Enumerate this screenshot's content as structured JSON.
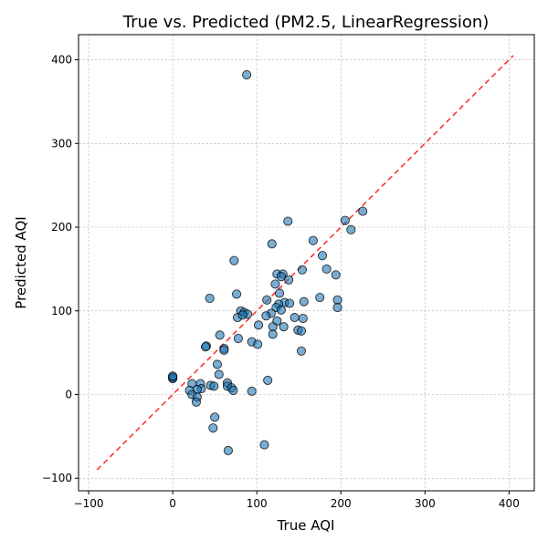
{
  "chart_data": {
    "type": "scatter",
    "title": "True vs. Predicted (PM2.5, LinearRegression)",
    "xlabel": "True AQI",
    "ylabel": "Predicted AQI",
    "xlim": [
      -112,
      430
    ],
    "ylim": [
      -115,
      430
    ],
    "xticks": [
      -100,
      0,
      100,
      200,
      300,
      400
    ],
    "yticks": [
      -100,
      0,
      100,
      200,
      300,
      400
    ],
    "grid": true,
    "point_color": "#1f77b4",
    "point_edge_color": "#000000",
    "reference_line": {
      "from": [
        -90,
        -90
      ],
      "to": [
        405,
        405
      ],
      "color": "#ff0000",
      "style": "dashed"
    },
    "points": [
      {
        "x": 0,
        "y": 20
      },
      {
        "x": 0,
        "y": 21
      },
      {
        "x": 0,
        "y": 19
      },
      {
        "x": 0,
        "y": 22
      },
      {
        "x": 88,
        "y": 382
      },
      {
        "x": 226,
        "y": 219
      },
      {
        "x": 205,
        "y": 208
      },
      {
        "x": 212,
        "y": 197
      },
      {
        "x": 137,
        "y": 207
      },
      {
        "x": 167,
        "y": 184
      },
      {
        "x": 118,
        "y": 180
      },
      {
        "x": 178,
        "y": 166
      },
      {
        "x": 73,
        "y": 160
      },
      {
        "x": 183,
        "y": 150
      },
      {
        "x": 154,
        "y": 149
      },
      {
        "x": 194,
        "y": 143
      },
      {
        "x": 124,
        "y": 144
      },
      {
        "x": 131,
        "y": 144
      },
      {
        "x": 129,
        "y": 141
      },
      {
        "x": 138,
        "y": 137
      },
      {
        "x": 122,
        "y": 132
      },
      {
        "x": 76,
        "y": 120
      },
      {
        "x": 127,
        "y": 121
      },
      {
        "x": 44,
        "y": 115
      },
      {
        "x": 175,
        "y": 116
      },
      {
        "x": 112,
        "y": 113
      },
      {
        "x": 196,
        "y": 113
      },
      {
        "x": 156,
        "y": 111
      },
      {
        "x": 133,
        "y": 110
      },
      {
        "x": 139,
        "y": 109
      },
      {
        "x": 126,
        "y": 108
      },
      {
        "x": 123,
        "y": 104
      },
      {
        "x": 196,
        "y": 104
      },
      {
        "x": 81,
        "y": 100
      },
      {
        "x": 85,
        "y": 98
      },
      {
        "x": 129,
        "y": 101
      },
      {
        "x": 117,
        "y": 97
      },
      {
        "x": 89,
        "y": 96
      },
      {
        "x": 111,
        "y": 94
      },
      {
        "x": 77,
        "y": 92
      },
      {
        "x": 145,
        "y": 92
      },
      {
        "x": 155,
        "y": 91
      },
      {
        "x": 83,
        "y": 95
      },
      {
        "x": 124,
        "y": 88
      },
      {
        "x": 102,
        "y": 83
      },
      {
        "x": 132,
        "y": 81
      },
      {
        "x": 119,
        "y": 81
      },
      {
        "x": 149,
        "y": 77
      },
      {
        "x": 153,
        "y": 76
      },
      {
        "x": 119,
        "y": 72
      },
      {
        "x": 56,
        "y": 71
      },
      {
        "x": 78,
        "y": 67
      },
      {
        "x": 94,
        "y": 63
      },
      {
        "x": 101,
        "y": 60
      },
      {
        "x": 40,
        "y": 58
      },
      {
        "x": 39,
        "y": 57
      },
      {
        "x": 61,
        "y": 55
      },
      {
        "x": 61,
        "y": 53
      },
      {
        "x": 153,
        "y": 52
      },
      {
        "x": 53,
        "y": 36
      },
      {
        "x": 55,
        "y": 24
      },
      {
        "x": 113,
        "y": 17
      },
      {
        "x": 65,
        "y": 14
      },
      {
        "x": 33,
        "y": 13
      },
      {
        "x": 23,
        "y": 13
      },
      {
        "x": 45,
        "y": 11
      },
      {
        "x": 49,
        "y": 10
      },
      {
        "x": 65,
        "y": 10
      },
      {
        "x": 70,
        "y": 8
      },
      {
        "x": 34,
        "y": 7
      },
      {
        "x": 29,
        "y": 6
      },
      {
        "x": 72,
        "y": 5
      },
      {
        "x": 20,
        "y": 5
      },
      {
        "x": 94,
        "y": 4
      },
      {
        "x": 23,
        "y": 0
      },
      {
        "x": 29,
        "y": -3
      },
      {
        "x": 28,
        "y": -9
      },
      {
        "x": 50,
        "y": -27
      },
      {
        "x": 48,
        "y": -40
      },
      {
        "x": 109,
        "y": -60
      },
      {
        "x": 66,
        "y": -67
      }
    ]
  }
}
